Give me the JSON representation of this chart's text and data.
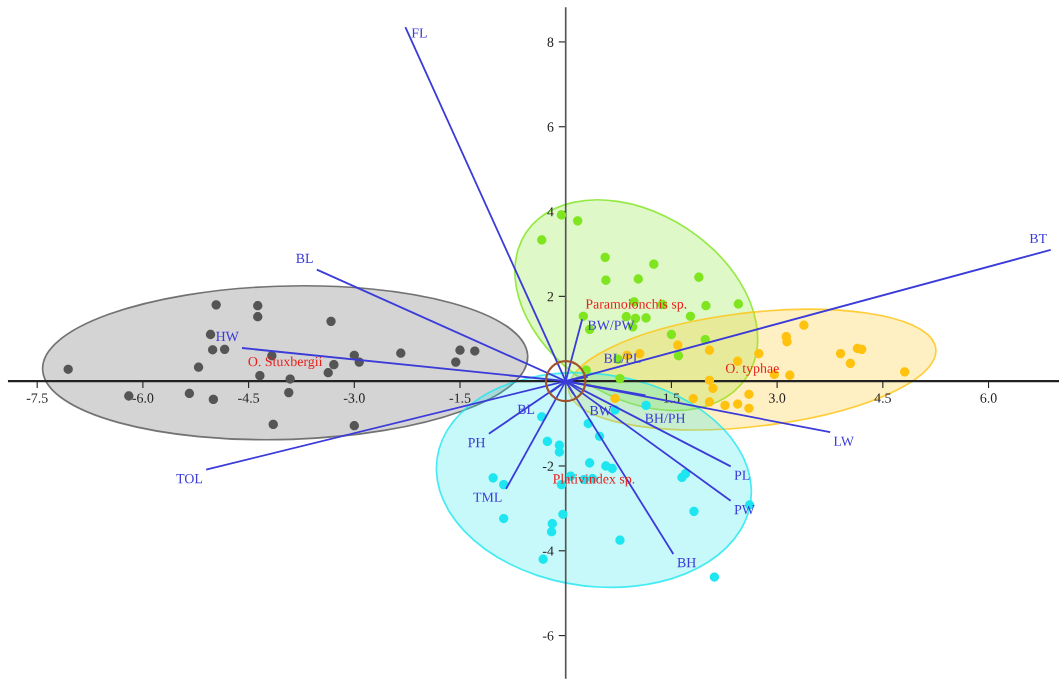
{
  "chart_data": {
    "type": "scatter",
    "xlim": [
      -7.9,
      7.0
    ],
    "ylim": [
      -7.0,
      8.8
    ],
    "xticks": [
      {
        "value": -7.5,
        "label": "-7.5"
      },
      {
        "value": -6.0,
        "label": "-6.0"
      },
      {
        "value": -4.5,
        "label": "-4.5"
      },
      {
        "value": -3.0,
        "label": "-3.0"
      },
      {
        "value": -1.5,
        "label": "-1.5"
      },
      {
        "value": 1.5,
        "label": "1.5"
      },
      {
        "value": 3.0,
        "label": "3.0"
      },
      {
        "value": 4.5,
        "label": "4.5"
      },
      {
        "value": 6.0,
        "label": "6.0"
      }
    ],
    "yticks": [
      -6,
      -4,
      -2,
      2,
      4,
      6,
      8
    ],
    "grid": false,
    "series": [
      {
        "name": "O. Stuxbergii",
        "color": "#555555",
        "x": [
          -7.06,
          -4.96,
          -4.37,
          -4.37,
          -3.33,
          -5.04,
          -5.01,
          -4.84,
          -4.17,
          -5.21,
          -4.34,
          -3.29,
          -3.37,
          -3.0,
          -2.93,
          -2.34,
          -1.5,
          -1.29,
          -1.56,
          -3.91,
          -3.93,
          -6.2,
          -5.34,
          -5.0,
          -4.15,
          -3.0
        ],
        "values": [
          0.28,
          1.8,
          1.78,
          1.52,
          1.41,
          1.1,
          0.74,
          0.75,
          0.6,
          0.33,
          0.13,
          0.39,
          0.2,
          0.61,
          0.45,
          0.66,
          0.73,
          0.71,
          0.45,
          0.05,
          -0.27,
          -0.35,
          -0.29,
          -0.43,
          -1.02,
          -1.05
        ]
      },
      {
        "name": "Paramoionchis sp.",
        "color": "#7ee51e",
        "x": [
          -0.06,
          0.17,
          -0.34,
          0.56,
          1.25,
          0.57,
          1.03,
          1.89,
          1.99,
          2.45,
          0.97,
          0.86,
          0.99,
          0.95,
          1.14,
          1.37,
          1.77,
          1.5,
          1.98,
          1.6,
          0.74,
          0.77,
          0.25,
          0.34,
          0.29
        ],
        "values": [
          3.92,
          3.78,
          3.33,
          2.92,
          2.76,
          2.38,
          2.41,
          2.45,
          1.78,
          1.82,
          1.87,
          1.52,
          1.48,
          1.28,
          1.49,
          1.81,
          1.53,
          1.1,
          0.98,
          0.6,
          0.52,
          0.06,
          1.53,
          1.22,
          0.26
        ]
      },
      {
        "name": "O. typhae",
        "color": "#ffc20e",
        "x": [
          0.87,
          1.05,
          1.59,
          2.04,
          2.74,
          3.13,
          3.14,
          3.38,
          3.9,
          4.04,
          4.14,
          4.2,
          4.81,
          2.96,
          3.18,
          2.04,
          2.09,
          2.44,
          2.6,
          2.6,
          2.44,
          2.26,
          2.04,
          1.81,
          0.7
        ],
        "values": [
          0.61,
          0.65,
          0.85,
          0.73,
          0.65,
          1.05,
          0.93,
          1.32,
          0.65,
          0.42,
          0.77,
          0.75,
          0.22,
          0.16,
          0.14,
          0.02,
          -0.17,
          0.47,
          -0.31,
          -0.64,
          -0.54,
          -0.57,
          -0.49,
          -0.41,
          -0.41
        ]
      },
      {
        "name": "Plativindex sp.",
        "color": "#1ee6f0",
        "x": [
          -0.34,
          -0.26,
          -0.09,
          -0.09,
          0.32,
          0.48,
          0.34,
          0.57,
          0.66,
          0.26,
          0.38,
          0.07,
          -0.06,
          -1.03,
          -0.88,
          -0.88,
          -0.04,
          -0.19,
          -0.2,
          -0.32,
          0.77,
          1.65,
          1.7,
          1.82,
          2.61,
          2.11,
          0.7,
          1.14
        ],
        "values": [
          -0.84,
          -1.42,
          -1.51,
          -1.67,
          -1.0,
          -1.3,
          -1.93,
          -2.0,
          -2.06,
          -2.32,
          -2.3,
          -2.24,
          -2.44,
          -2.28,
          -2.44,
          -3.24,
          -3.14,
          -3.36,
          -3.55,
          -4.2,
          -3.75,
          -2.27,
          -2.18,
          -3.07,
          -2.92,
          -4.62,
          -0.68,
          -0.57
        ]
      },
      {
        "name": "FL",
        "type": "line",
        "color": "#3b3bd9",
        "x": [
          0,
          -2.27
        ],
        "values": [
          0,
          8.33
        ]
      },
      {
        "name": "BL",
        "type": "line",
        "color": "#3b3bd9",
        "x": [
          0,
          -3.52
        ],
        "values": [
          0,
          2.62
        ]
      },
      {
        "name": "HW",
        "type": "line",
        "color": "#3b3bd9",
        "x": [
          0,
          -4.58
        ],
        "values": [
          0,
          0.78
        ]
      },
      {
        "name": "TOL",
        "type": "line",
        "color": "#3b3bd9",
        "x": [
          0,
          -5.09
        ],
        "values": [
          0,
          -2.08
        ]
      },
      {
        "name": "PH",
        "type": "line",
        "color": "#3b3bd9",
        "x": [
          0,
          -1.08
        ],
        "values": [
          0,
          -1.23
        ]
      },
      {
        "name": "TML",
        "type": "line",
        "color": "#3b3bd9",
        "x": [
          0,
          -0.84
        ],
        "values": [
          0,
          -2.52
        ]
      },
      {
        "name": "BW/PW",
        "type": "line",
        "color": "#3b3bd9",
        "x": [
          0,
          0.23
        ],
        "values": [
          0,
          1.44
        ]
      },
      {
        "name": "BH/PH",
        "type": "line",
        "color": "#3b3bd9",
        "x": [
          0,
          1.12
        ],
        "values": [
          0,
          -0.33
        ]
      },
      {
        "name": "LW",
        "type": "line",
        "color": "#3b3bd9",
        "x": [
          0,
          3.74
        ],
        "values": [
          0,
          -1.2
        ]
      },
      {
        "name": "PL",
        "type": "line",
        "color": "#3b3bd9",
        "x": [
          0,
          2.33
        ],
        "values": [
          0,
          -2.0
        ]
      },
      {
        "name": "PW",
        "type": "line",
        "color": "#3b3bd9",
        "x": [
          0,
          2.33
        ],
        "values": [
          0,
          -2.81
        ]
      },
      {
        "name": "BH",
        "type": "line",
        "color": "#3b3bd9",
        "x": [
          0,
          1.52
        ],
        "values": [
          0,
          -4.06
        ]
      },
      {
        "name": "BT",
        "type": "line",
        "color": "#3b3bd9",
        "x": [
          0,
          6.87
        ],
        "values": [
          0,
          3.09
        ]
      },
      {
        "name": "BL/PL",
        "type": "line",
        "color": "#3b3bd9",
        "x": [
          0,
          0.3
        ],
        "values": [
          0,
          0.1
        ]
      },
      {
        "name": "BL",
        "type": "line",
        "color": "#3b3bd9",
        "x": [
          0,
          -0.2
        ],
        "values": [
          0,
          -0.25
        ]
      },
      {
        "name": "BW",
        "type": "line",
        "color": "#3b3bd9",
        "x": [
          0,
          0.1
        ],
        "values": [
          0,
          -0.28
        ]
      }
    ]
  }
}
